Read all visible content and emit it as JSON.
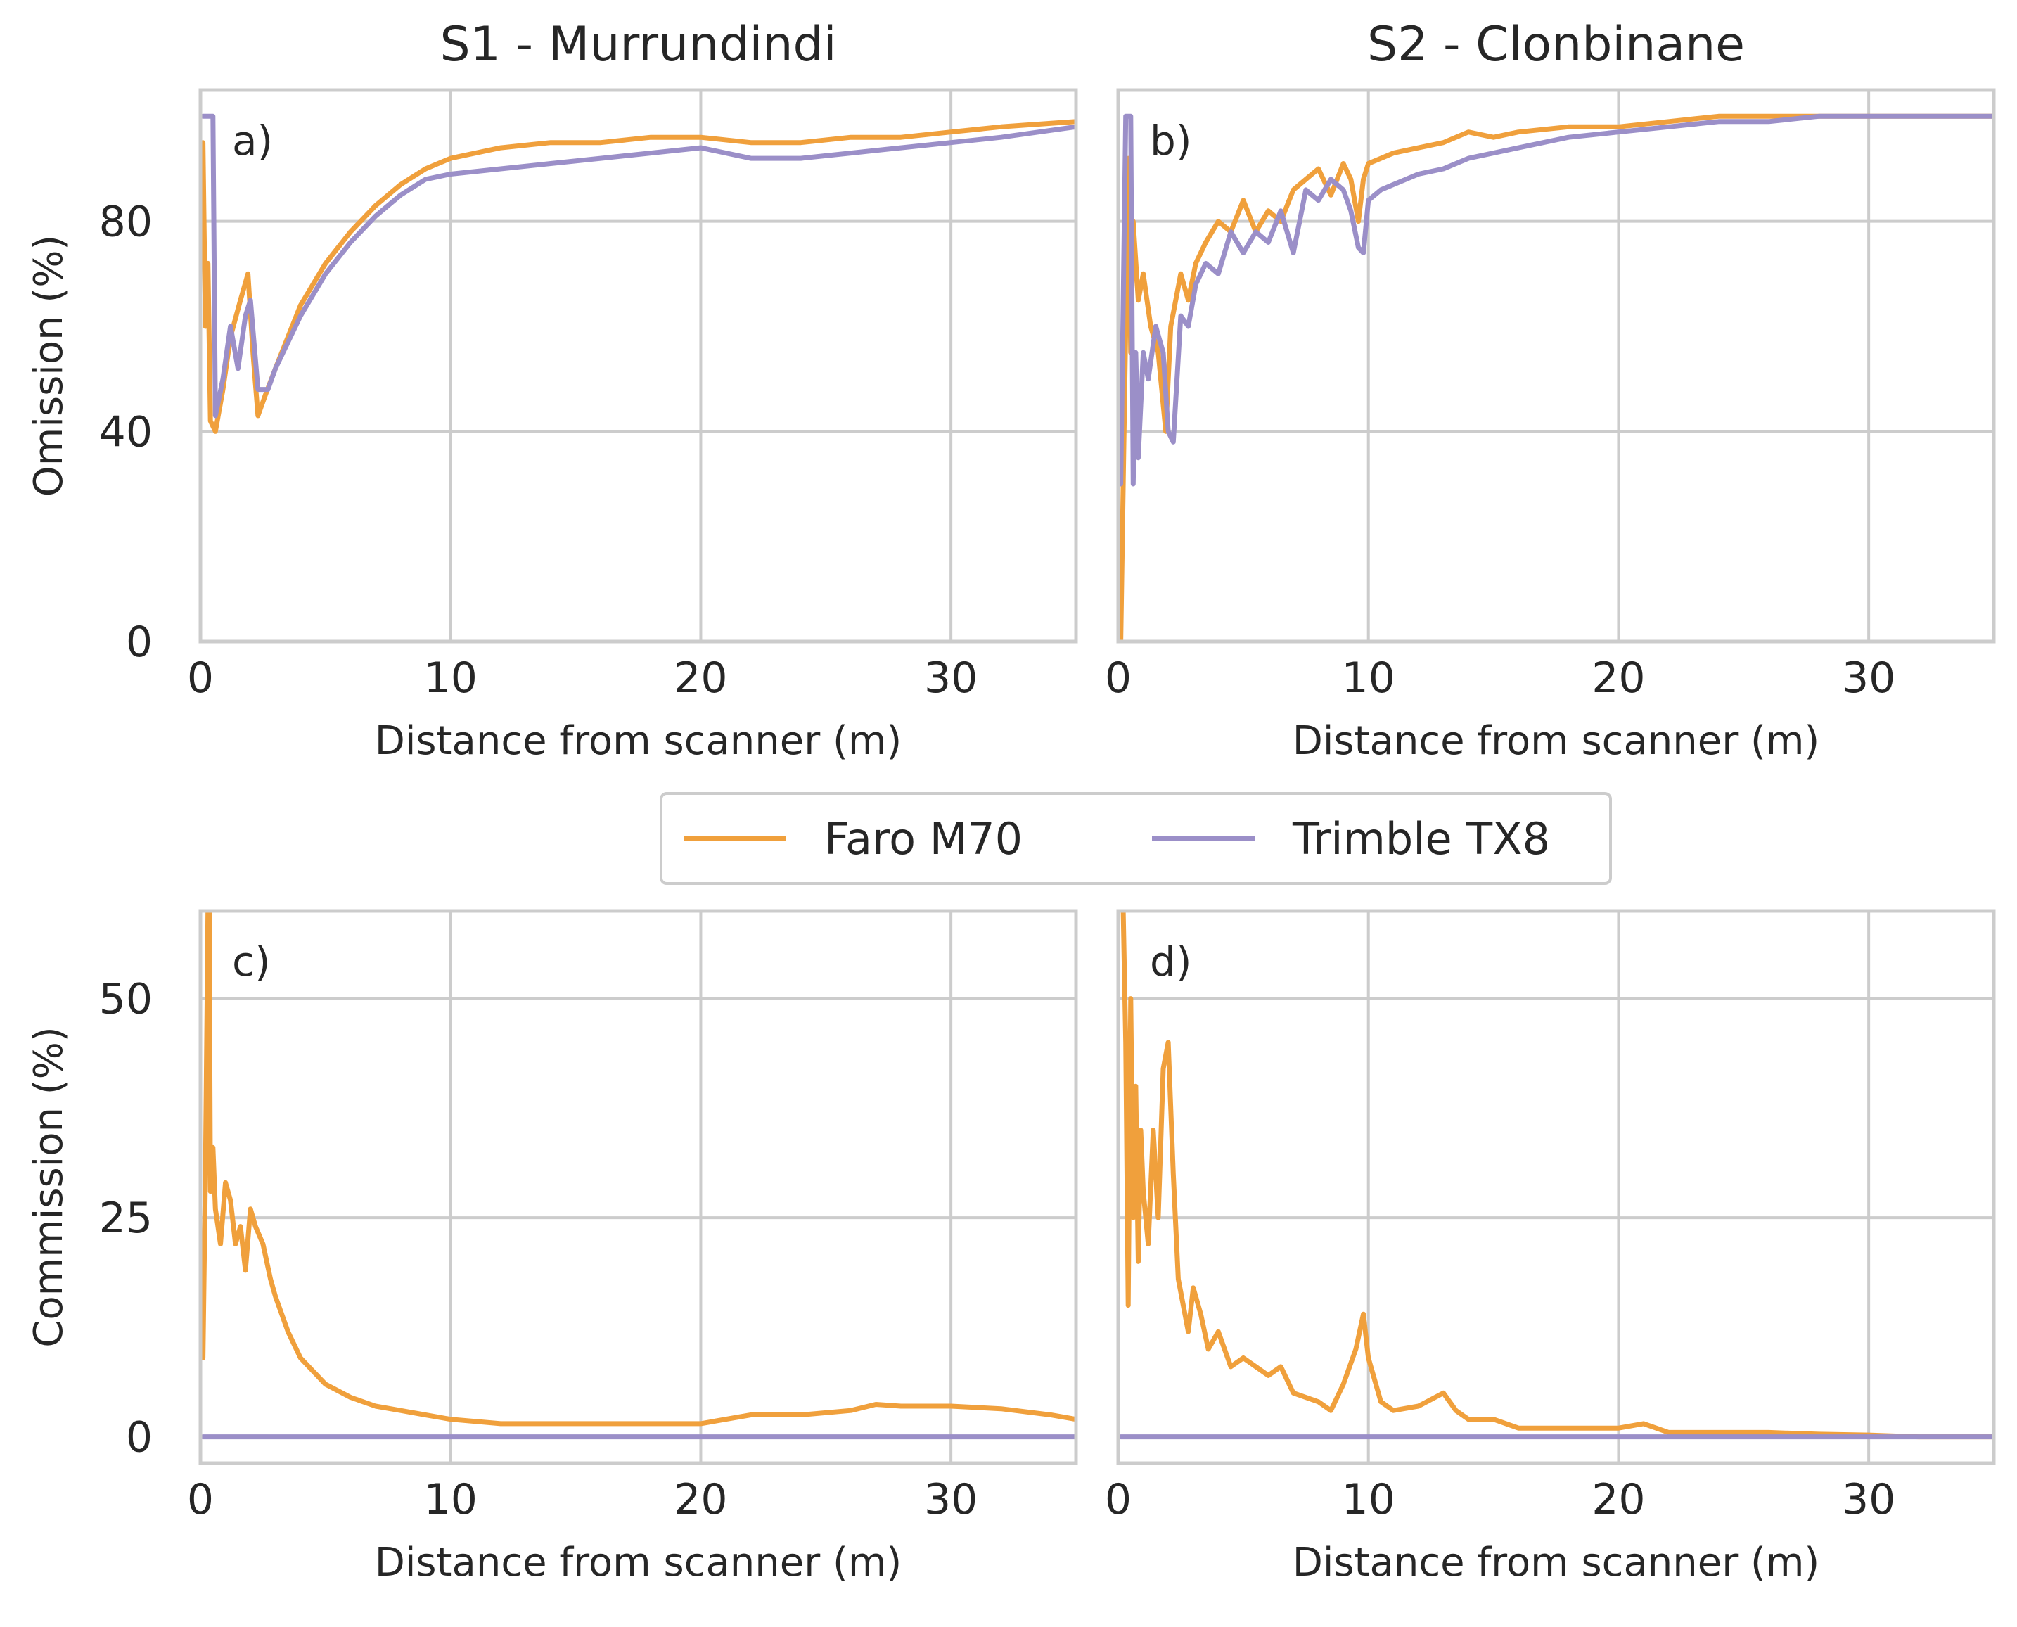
{
  "colors": {
    "faro": "#f0a03c",
    "trimble": "#9b8fc8"
  },
  "legend": {
    "items": [
      "Faro M70",
      "Trimble TX8"
    ],
    "placement": "center, between rows"
  },
  "chart_data": [
    {
      "id": "a",
      "type": "line",
      "title": "S1 - Murrundindi",
      "letter": "a)",
      "xlabel": "Distance from scanner (m)",
      "ylabel": "Omission (%)",
      "xlim": [
        0,
        35
      ],
      "ylim": [
        0,
        105
      ],
      "xticks": [
        0,
        10,
        20,
        30
      ],
      "yticks": [
        0,
        40,
        80
      ],
      "series": [
        {
          "name": "Faro M70",
          "color": "#f0a03c",
          "x": [
            0.1,
            0.2,
            0.3,
            0.4,
            0.6,
            0.9,
            1.2,
            1.6,
            1.9,
            2.1,
            2.3,
            2.6,
            3.0,
            3.5,
            4.0,
            5.0,
            6.0,
            7.0,
            8.0,
            9.0,
            10.0,
            12.0,
            14.0,
            16.0,
            18.0,
            20.0,
            22.0,
            24.0,
            26.0,
            28.0,
            30.0,
            32.0,
            35.0
          ],
          "y": [
            95,
            60,
            72,
            42,
            40,
            48,
            58,
            65,
            70,
            55,
            43,
            47,
            52,
            58,
            64,
            72,
            78,
            83,
            87,
            90,
            92,
            94,
            95,
            95,
            96,
            96,
            95,
            95,
            96,
            96,
            97,
            98,
            99
          ]
        },
        {
          "name": "Trimble TX8",
          "color": "#9b8fc8",
          "x": [
            0.1,
            0.3,
            0.5,
            0.6,
            0.9,
            1.2,
            1.5,
            1.8,
            2.0,
            2.3,
            2.7,
            3.0,
            3.5,
            4.0,
            5.0,
            6.0,
            7.0,
            8.0,
            9.0,
            10.0,
            12.0,
            14.0,
            16.0,
            18.0,
            20.0,
            22.0,
            24.0,
            26.0,
            28.0,
            30.0,
            32.0,
            35.0
          ],
          "y": [
            100,
            100,
            100,
            43,
            50,
            60,
            52,
            62,
            65,
            48,
            48,
            52,
            57,
            62,
            70,
            76,
            81,
            85,
            88,
            89,
            90,
            91,
            92,
            93,
            94,
            92,
            92,
            93,
            94,
            95,
            96,
            98
          ]
        }
      ]
    },
    {
      "id": "b",
      "type": "line",
      "title": "S2 - Clonbinane",
      "letter": "b)",
      "xlabel": "Distance from scanner (m)",
      "ylabel": "",
      "xlim": [
        0,
        35
      ],
      "ylim": [
        0,
        105
      ],
      "xticks": [
        0,
        10,
        20,
        30
      ],
      "yticks": [
        0,
        40,
        80
      ],
      "series": [
        {
          "name": "Faro M70",
          "color": "#f0a03c",
          "x": [
            0.1,
            0.2,
            0.3,
            0.4,
            0.5,
            0.6,
            0.8,
            1.0,
            1.3,
            1.6,
            1.9,
            2.1,
            2.5,
            2.8,
            3.1,
            3.5,
            4.0,
            4.5,
            5.0,
            5.5,
            6.0,
            6.5,
            7.0,
            7.5,
            8.0,
            8.5,
            9.0,
            9.3,
            9.6,
            9.8,
            10.0,
            10.5,
            11.0,
            12.0,
            13.0,
            14.0,
            15.0,
            16.0,
            18.0,
            20.0,
            22.0,
            24.0,
            26.0,
            28.0,
            30.0,
            32.0,
            35.0
          ],
          "y": [
            0,
            30,
            60,
            92,
            55,
            80,
            65,
            70,
            60,
            55,
            40,
            60,
            70,
            65,
            72,
            76,
            80,
            78,
            84,
            78,
            82,
            80,
            86,
            88,
            90,
            85,
            91,
            88,
            80,
            88,
            91,
            92,
            93,
            94,
            95,
            97,
            96,
            97,
            98,
            98,
            99,
            100,
            100,
            100,
            100,
            100,
            100
          ]
        },
        {
          "name": "Trimble TX8",
          "color": "#9b8fc8",
          "x": [
            0.1,
            0.3,
            0.4,
            0.5,
            0.6,
            0.7,
            0.8,
            1.0,
            1.2,
            1.5,
            1.8,
            2.0,
            2.2,
            2.5,
            2.8,
            3.1,
            3.5,
            4.0,
            4.5,
            5.0,
            5.5,
            6.0,
            6.5,
            7.0,
            7.5,
            8.0,
            8.5,
            9.0,
            9.3,
            9.6,
            9.8,
            10.0,
            10.5,
            11.0,
            12.0,
            13.0,
            14.0,
            15.0,
            16.0,
            18.0,
            20.0,
            22.0,
            24.0,
            26.0,
            28.0,
            30.0,
            32.0,
            35.0
          ],
          "y": [
            30,
            100,
            100,
            100,
            30,
            55,
            35,
            55,
            50,
            60,
            55,
            40,
            38,
            62,
            60,
            68,
            72,
            70,
            78,
            74,
            78,
            76,
            82,
            74,
            86,
            84,
            88,
            86,
            82,
            75,
            74,
            84,
            86,
            87,
            89,
            90,
            92,
            93,
            94,
            96,
            97,
            98,
            99,
            99,
            100,
            100,
            100,
            100
          ]
        }
      ]
    },
    {
      "id": "c",
      "type": "line",
      "title": "",
      "letter": "c)",
      "xlabel": "Distance from scanner (m)",
      "ylabel": "Commission (%)",
      "xlim": [
        0,
        35
      ],
      "ylim": [
        -3,
        60
      ],
      "xticks": [
        0,
        10,
        20,
        30
      ],
      "yticks": [
        0,
        25,
        50
      ],
      "series": [
        {
          "name": "Faro M70",
          "color": "#f0a03c",
          "x": [
            0.1,
            0.2,
            0.3,
            0.35,
            0.4,
            0.5,
            0.6,
            0.8,
            1.0,
            1.2,
            1.4,
            1.6,
            1.8,
            2.0,
            2.2,
            2.5,
            2.8,
            3.0,
            3.5,
            4.0,
            5.0,
            6.0,
            7.0,
            8.0,
            9.0,
            10.0,
            12.0,
            14.0,
            16.0,
            18.0,
            20.0,
            22.0,
            24.0,
            26.0,
            27.0,
            28.0,
            30.0,
            32.0,
            34.0,
            35.0
          ],
          "y": [
            9,
            30,
            60,
            62,
            28,
            33,
            26,
            22,
            29,
            27,
            22,
            24,
            19,
            26,
            24,
            22,
            18,
            16,
            12,
            9,
            6,
            4.5,
            3.5,
            3,
            2.5,
            2,
            1.5,
            1.5,
            1.5,
            1.5,
            1.5,
            2.5,
            2.5,
            3,
            3.7,
            3.5,
            3.5,
            3.2,
            2.5,
            2
          ]
        },
        {
          "name": "Trimble TX8",
          "color": "#9b8fc8",
          "x": [
            0.1,
            35
          ],
          "y": [
            0,
            0
          ]
        }
      ]
    },
    {
      "id": "d",
      "type": "line",
      "title": "",
      "letter": "d)",
      "xlabel": "Distance from scanner (m)",
      "ylabel": "",
      "xlim": [
        0,
        35
      ],
      "ylim": [
        -3,
        60
      ],
      "xticks": [
        0,
        10,
        20,
        30
      ],
      "yticks": [
        0,
        25,
        50
      ],
      "series": [
        {
          "name": "Faro M70",
          "color": "#f0a03c",
          "x": [
            0.2,
            0.3,
            0.4,
            0.5,
            0.6,
            0.7,
            0.8,
            0.9,
            1.0,
            1.2,
            1.4,
            1.6,
            1.8,
            2.0,
            2.2,
            2.4,
            2.6,
            2.8,
            3.0,
            3.3,
            3.6,
            4.0,
            4.5,
            5.0,
            6.0,
            6.5,
            7.0,
            8.0,
            8.5,
            9.0,
            9.5,
            9.8,
            10.0,
            10.5,
            11.0,
            12.0,
            13.0,
            13.5,
            14.0,
            15.0,
            16.0,
            18.0,
            20.0,
            21.0,
            22.0,
            24.0,
            26.0,
            28.0,
            30.0,
            32.0,
            35.0
          ],
          "y": [
            60,
            45,
            15,
            50,
            25,
            40,
            20,
            35,
            28,
            22,
            35,
            25,
            42,
            45,
            30,
            18,
            15,
            12,
            17,
            14,
            10,
            12,
            8,
            9,
            7,
            8,
            5,
            4,
            3,
            6,
            10,
            14,
            9,
            4,
            3,
            3.5,
            5,
            3,
            2,
            2,
            1,
            1,
            1,
            1.5,
            0.5,
            0.5,
            0.5,
            0.3,
            0.2,
            0,
            0
          ]
        },
        {
          "name": "Trimble TX8",
          "color": "#9b8fc8",
          "x": [
            0.1,
            35
          ],
          "y": [
            0,
            0
          ]
        }
      ]
    }
  ]
}
